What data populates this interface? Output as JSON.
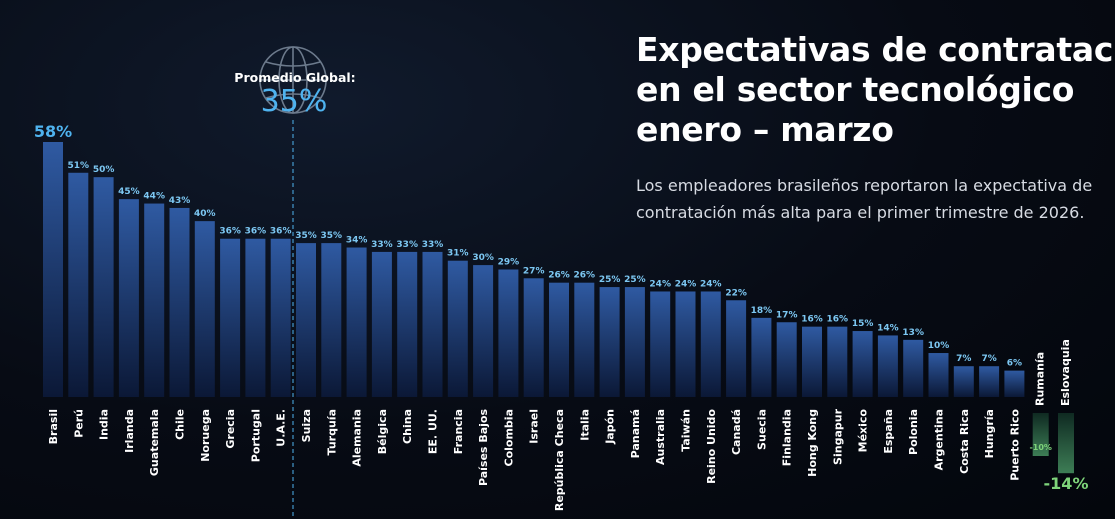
{
  "title_lines": [
    "Expectativas de contratación",
    "en el sector tecnológico",
    "enero – marzo"
  ],
  "subtitle": "Los empleadores brasileños reportaron la expectativa de contratación más alta para el primer trimestre de 2026.",
  "global_average": {
    "label": "Promedio Global:",
    "value_label": "35%",
    "value": 35
  },
  "colors": {
    "bar_top": "#2f5aa2",
    "bar_bottom": "#0a1732",
    "value_label": "#7cc7f2",
    "highlight": "#4fb3ef",
    "negative": "#7ed37a",
    "negative_bar": "#2e6b4a"
  },
  "chart_data": {
    "type": "bar",
    "title": "Expectativas de contratación en el sector tecnológico enero – marzo",
    "xlabel": "",
    "ylabel": "",
    "ylim": [
      -14,
      58
    ],
    "grid": false,
    "categories": [
      "Brasil",
      "Perú",
      "India",
      "Irlanda",
      "Guatemala",
      "Chile",
      "Noruega",
      "Grecia",
      "Portugal",
      "U.A.E.",
      "Suiza",
      "Turquía",
      "Alemania",
      "Bélgica",
      "China",
      "EE. UU.",
      "Francia",
      "Países Bajos",
      "Colombia",
      "Israel",
      "República Checa",
      "Italia",
      "Japón",
      "Panamá",
      "Australia",
      "Taiwán",
      "Reino Unido",
      "Canadá",
      "Suecia",
      "Finlandia",
      "Hong Kong",
      "Singapur",
      "México",
      "España",
      "Polonia",
      "Argentina",
      "Costa Rica",
      "Hungría",
      "Puerto Rico",
      "Rumanía",
      "Eslovaquia"
    ],
    "values": [
      58,
      51,
      50,
      45,
      44,
      43,
      40,
      36,
      36,
      36,
      35,
      35,
      34,
      33,
      33,
      33,
      31,
      30,
      29,
      27,
      26,
      26,
      25,
      25,
      24,
      24,
      24,
      22,
      18,
      17,
      16,
      16,
      15,
      14,
      13,
      10,
      7,
      7,
      6,
      -10,
      -14
    ],
    "value_labels": [
      "58%",
      "51%",
      "50%",
      "45%",
      "44%",
      "43%",
      "40%",
      "36%",
      "36%",
      "36%",
      "35%",
      "35%",
      "34%",
      "33%",
      "33%",
      "33%",
      "31%",
      "30%",
      "29%",
      "27%",
      "26%",
      "26%",
      "25%",
      "25%",
      "24%",
      "24%",
      "24%",
      "22%",
      "18%",
      "17%",
      "16%",
      "16%",
      "15%",
      "14%",
      "13%",
      "10%",
      "7%",
      "7%",
      "6%",
      "-10%",
      "-14%"
    ]
  }
}
